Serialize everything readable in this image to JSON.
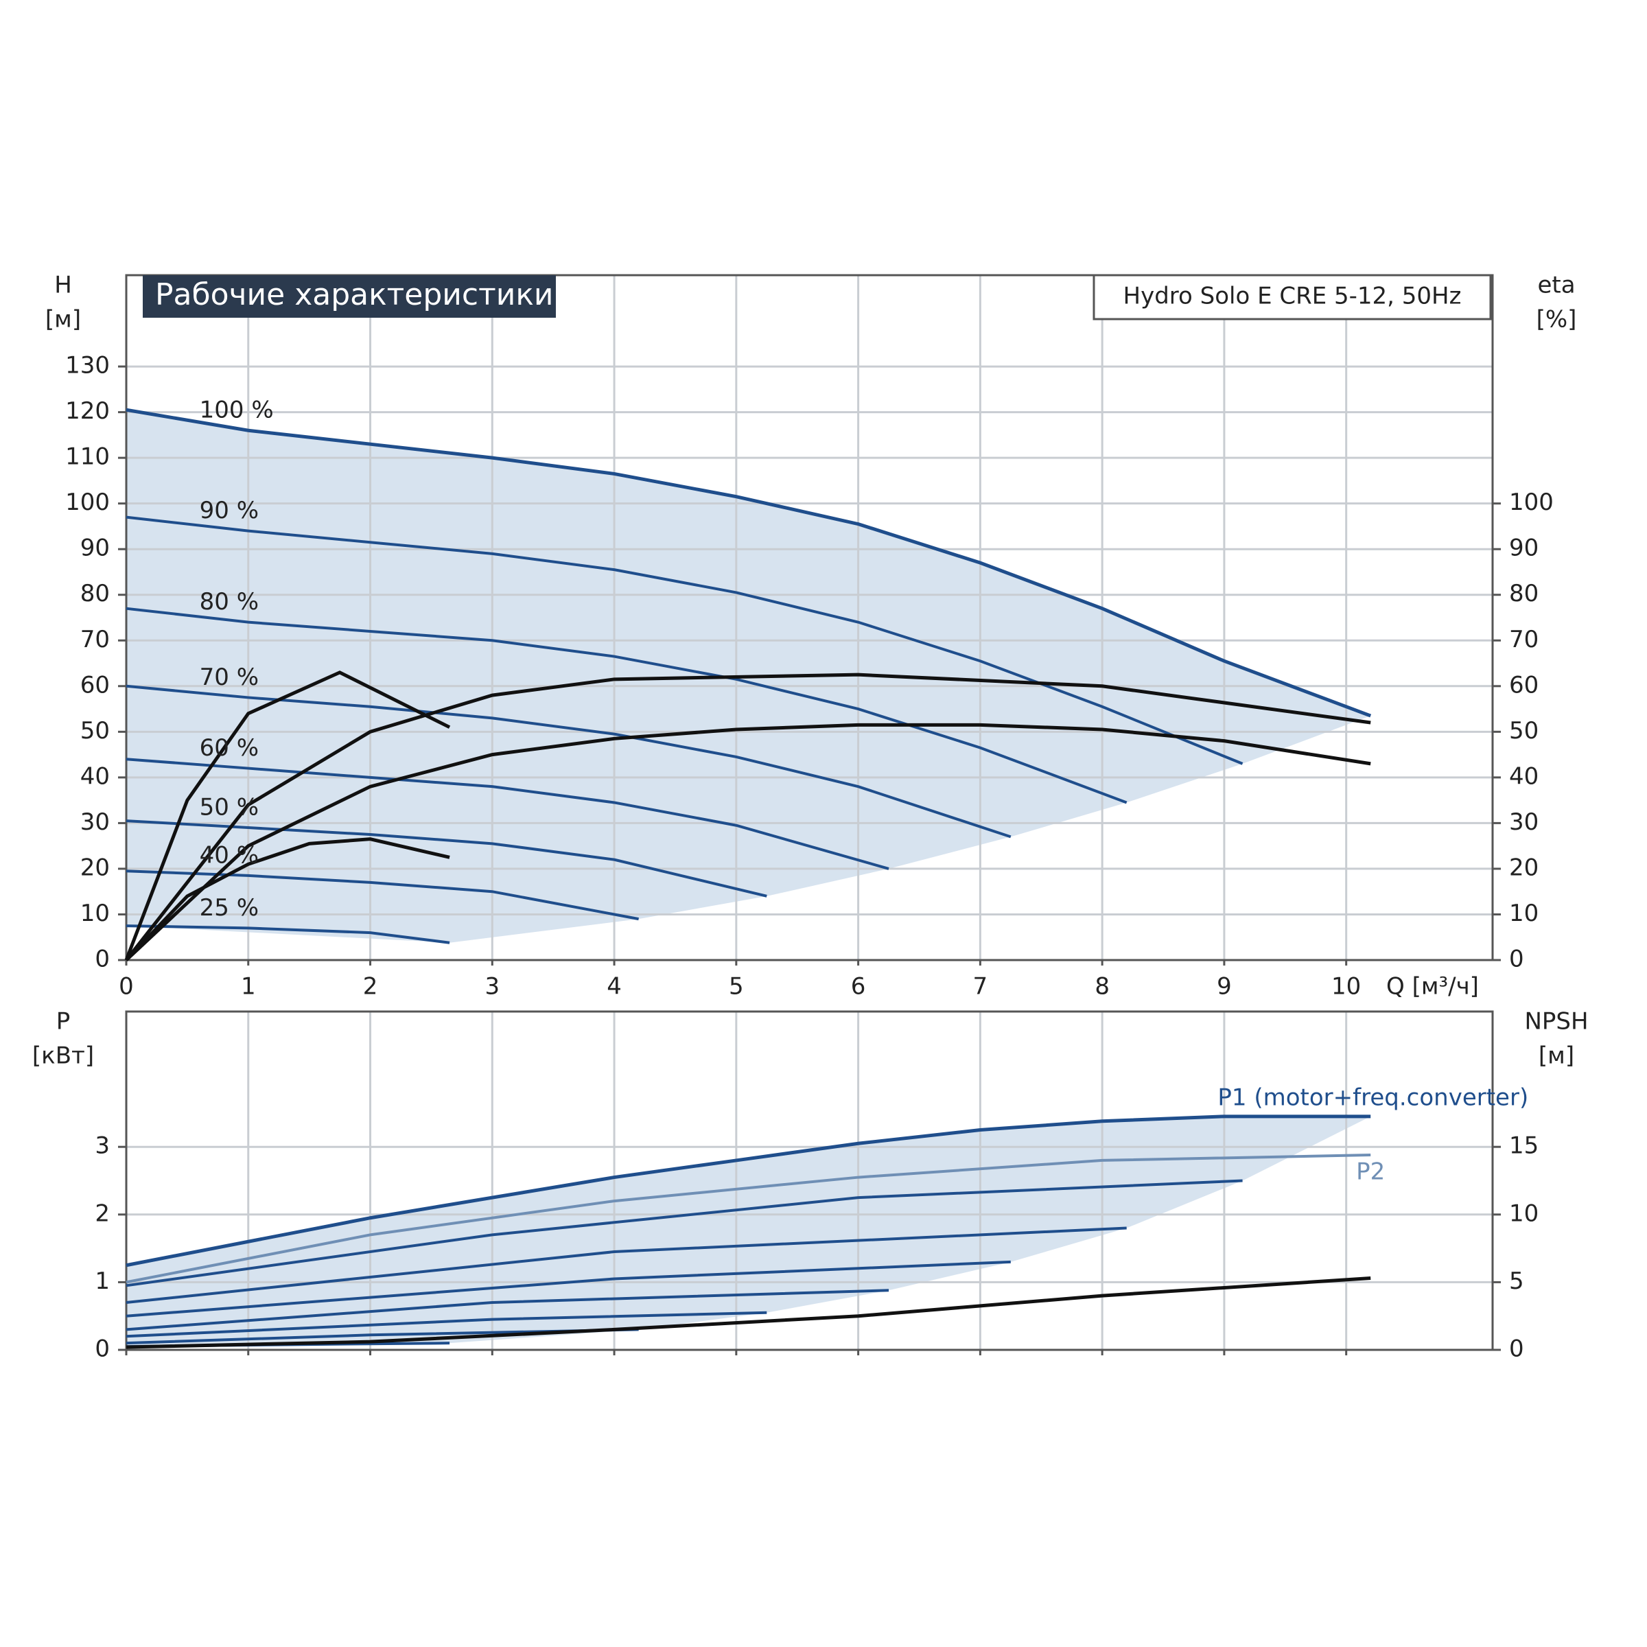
{
  "chart_data": [
    {
      "type": "line",
      "title": "Рабочие характеристики",
      "subtitle": "Hydro Solo E CRE 5-12, 50Hz",
      "ylabel": "H",
      "yunit": "[м]",
      "y2label": "eta",
      "y2unit": "[%]",
      "xlabel": "Q [м³/ч]",
      "xlim": [
        0,
        11.2
      ],
      "xticks": [
        0,
        1,
        2,
        3,
        4,
        5,
        6,
        7,
        8,
        9,
        10
      ],
      "ylim": [
        0,
        150
      ],
      "yticks": [
        0,
        10,
        20,
        30,
        40,
        50,
        60,
        70,
        80,
        90,
        100,
        110,
        120,
        130
      ],
      "y2lim": [
        0,
        150
      ],
      "y2ticks": [
        0,
        10,
        20,
        30,
        40,
        50,
        60,
        70,
        80,
        90,
        100
      ],
      "grid": true,
      "shade": true,
      "series": [
        {
          "name": "100 %",
          "color": "#1f4e8c",
          "x": [
            0,
            1,
            2,
            3,
            4,
            5,
            6,
            7,
            8,
            9,
            10.2
          ],
          "values": [
            120.5,
            116,
            113,
            110,
            106.5,
            101.5,
            95.5,
            87,
            77,
            65.5,
            53.5
          ]
        },
        {
          "name": "90 %",
          "color": "#1f4e8c",
          "x": [
            0,
            1,
            2,
            3,
            4,
            5,
            6,
            7,
            8,
            9.15
          ],
          "values": [
            97,
            94,
            91.5,
            89,
            85.5,
            80.5,
            74,
            65.5,
            55.5,
            43
          ]
        },
        {
          "name": "80 %",
          "color": "#1f4e8c",
          "x": [
            0,
            1,
            2,
            3,
            4,
            5,
            6,
            7,
            8.2
          ],
          "values": [
            77,
            74,
            72,
            70,
            66.5,
            61.5,
            55,
            46.5,
            34.5
          ]
        },
        {
          "name": "70 %",
          "color": "#1f4e8c",
          "x": [
            0,
            1,
            2,
            3,
            4,
            5,
            6,
            7.25
          ],
          "values": [
            60,
            57.5,
            55.5,
            53,
            49.5,
            44.5,
            38,
            27
          ]
        },
        {
          "name": "60 %",
          "color": "#1f4e8c",
          "x": [
            0,
            1,
            2,
            3,
            4,
            5,
            6.25
          ],
          "values": [
            44,
            42,
            40,
            38,
            34.5,
            29.5,
            20
          ]
        },
        {
          "name": "50 %",
          "color": "#1f4e8c",
          "x": [
            0,
            1,
            2,
            3,
            4,
            5.25
          ],
          "values": [
            30.5,
            29,
            27.5,
            25.5,
            22,
            14
          ]
        },
        {
          "name": "40 %",
          "color": "#1f4e8c",
          "x": [
            0,
            1,
            2,
            3,
            4.2
          ],
          "values": [
            19.5,
            18.5,
            17,
            15,
            9
          ]
        },
        {
          "name": "25 %",
          "color": "#1f4e8c",
          "x": [
            0,
            1,
            2,
            2.65
          ],
          "values": [
            7.5,
            7,
            6,
            3.8
          ]
        },
        {
          "color": "#111111",
          "axis": "y2",
          "x": [
            0,
            1,
            2,
            3,
            4,
            5,
            6,
            7,
            8,
            9,
            10.2
          ],
          "values": [
            0,
            25,
            38,
            45,
            48.5,
            50.5,
            51.5,
            51.5,
            50.5,
            48,
            43
          ]
        },
        {
          "color": "#111111",
          "axis": "y2",
          "x": [
            0,
            0.5,
            1,
            1.5,
            2,
            2.65
          ],
          "values": [
            0,
            14,
            21,
            25.5,
            26.5,
            22.5
          ]
        },
        {
          "color": "#111111",
          "axis": "y2",
          "x": [
            0,
            0.5,
            1,
            1.75,
            2.65
          ],
          "values": [
            0,
            35,
            54,
            63,
            51
          ]
        },
        {
          "color": "#111111",
          "axis": "y2",
          "x": [
            0,
            1,
            2,
            3,
            4,
            6,
            8,
            10.2
          ],
          "values": [
            0,
            34,
            50,
            58,
            61.5,
            62.5,
            60,
            52
          ]
        }
      ]
    },
    {
      "type": "line",
      "ylabel": "P",
      "yunit": "[кВт]",
      "y2label": "NPSH",
      "y2unit": "[м]",
      "xlim": [
        0,
        11.2
      ],
      "xticks": [
        0,
        1,
        2,
        3,
        4,
        5,
        6,
        7,
        8,
        9,
        10
      ],
      "xtick_labels": false,
      "ylim": [
        0,
        5
      ],
      "yticks": [
        0,
        1,
        2,
        3
      ],
      "y2lim": [
        0,
        25
      ],
      "y2ticks": [
        0,
        5,
        10,
        15
      ],
      "grid": true,
      "shade": true,
      "series": [
        {
          "name": "P1 (motor+freq.converter)",
          "color": "#1f4e8c",
          "x": [
            0,
            1,
            2,
            3,
            4,
            5,
            6,
            7,
            8,
            9,
            10.2
          ],
          "values": [
            1.25,
            1.6,
            1.95,
            2.25,
            2.55,
            2.8,
            3.05,
            3.25,
            3.38,
            3.45,
            3.45
          ]
        },
        {
          "name": "P2",
          "color": "#6f8fb5",
          "x": [
            0,
            2,
            4,
            6,
            8,
            10.2
          ],
          "values": [
            1.0,
            1.7,
            2.2,
            2.55,
            2.8,
            2.88
          ]
        },
        {
          "color": "#1f4e8c",
          "x": [
            0,
            3,
            6,
            9.15
          ],
          "values": [
            0.95,
            1.7,
            2.25,
            2.5
          ]
        },
        {
          "color": "#1f4e8c",
          "x": [
            0,
            4,
            8.2
          ],
          "values": [
            0.7,
            1.45,
            1.8
          ]
        },
        {
          "color": "#1f4e8c",
          "x": [
            0,
            4,
            7.25
          ],
          "values": [
            0.5,
            1.05,
            1.3
          ]
        },
        {
          "color": "#1f4e8c",
          "x": [
            0,
            3,
            6.25
          ],
          "values": [
            0.3,
            0.7,
            0.88
          ]
        },
        {
          "color": "#1f4e8c",
          "x": [
            0,
            3,
            5.25
          ],
          "values": [
            0.2,
            0.45,
            0.55
          ]
        },
        {
          "color": "#1f4e8c",
          "x": [
            0,
            2,
            4.2
          ],
          "values": [
            0.1,
            0.22,
            0.3
          ]
        },
        {
          "color": "#1f4e8c",
          "x": [
            0,
            1.5,
            2.65
          ],
          "values": [
            0.05,
            0.08,
            0.1
          ]
        },
        {
          "color": "#111111",
          "axis": "y2",
          "x": [
            0,
            2,
            4,
            6,
            8,
            10.2
          ],
          "values": [
            0.2,
            0.6,
            1.5,
            2.5,
            4.0,
            5.3
          ]
        }
      ]
    }
  ]
}
